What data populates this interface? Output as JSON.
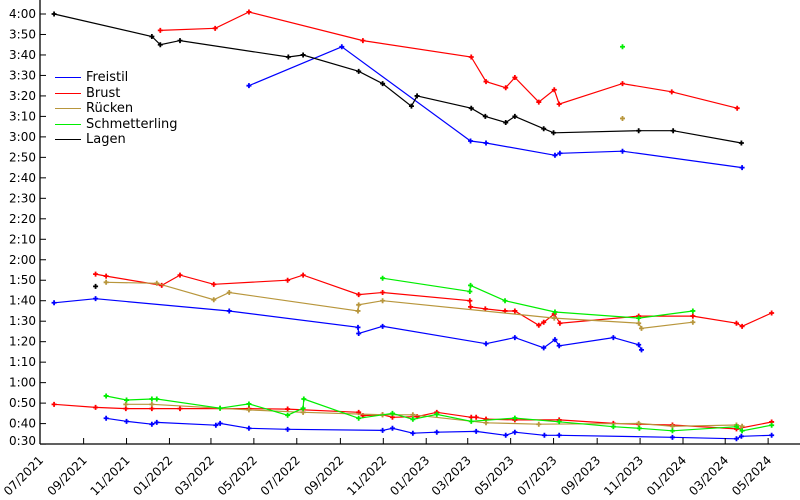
{
  "chart_data": {
    "type": "line",
    "title": "",
    "xlabel": "",
    "ylabel": "",
    "x_unit": "date",
    "y_unit": "seconds (shown as m:ss)",
    "xlim": [
      "2021-07-01",
      "2024-06-15"
    ],
    "ylim": [
      30,
      240
    ],
    "grid": false,
    "legend_position": "top-left",
    "y_ticks": [
      30,
      40,
      50,
      60,
      70,
      80,
      90,
      100,
      110,
      120,
      130,
      140,
      150,
      160,
      170,
      180,
      190,
      200,
      210,
      220,
      230,
      240
    ],
    "y_tick_labels": [
      "0:30",
      "0:40",
      "0:50",
      "1:00",
      "1:10",
      "1:20",
      "1:30",
      "1:40",
      "1:50",
      "2:00",
      "2:10",
      "2:20",
      "2:30",
      "2:40",
      "2:50",
      "3:00",
      "3:10",
      "3:20",
      "3:30",
      "3:40",
      "3:50",
      "4:00"
    ],
    "x_ticks": [
      "2021-07-01",
      "2021-09-01",
      "2021-11-01",
      "2022-01-01",
      "2022-03-01",
      "2022-05-01",
      "2022-07-01",
      "2022-09-01",
      "2022-11-01",
      "2023-01-01",
      "2023-03-01",
      "2023-05-01",
      "2023-07-01",
      "2023-09-01",
      "2023-11-01",
      "2024-01-01",
      "2024-03-01",
      "2024-05-01"
    ],
    "x_tick_labels": [
      "07/2021",
      "09/2021",
      "11/2021",
      "01/2022",
      "03/2022",
      "05/2022",
      "07/2022",
      "09/2022",
      "11/2022",
      "01/2023",
      "03/2023",
      "05/2023",
      "07/2023",
      "09/2023",
      "11/2023",
      "01/2024",
      "03/2024",
      "05/2024"
    ],
    "series": [
      {
        "name": "Freistil",
        "color": "#0000ff",
        "segments": [
          [
            [
              "2022-04-24",
              205
            ],
            [
              "2022-09-03",
              224
            ],
            [
              "2023-03-05",
              178
            ],
            [
              "2023-03-27",
              177
            ],
            [
              "2023-07-03",
              171
            ],
            [
              "2023-07-10",
              172
            ],
            [
              "2023-10-07",
              173
            ],
            [
              "2024-03-25",
              165
            ]
          ],
          [
            [
              "2021-07-21",
              99
            ],
            [
              "2021-09-18",
              101
            ],
            [
              "2022-03-27",
              95
            ],
            [
              "2022-09-26",
              87
            ],
            [
              "2022-09-27",
              84
            ],
            [
              "2022-10-31",
              87.5
            ],
            [
              "2023-03-27",
              79
            ],
            [
              "2023-05-07",
              82
            ],
            [
              "2023-06-17",
              77
            ],
            [
              "2023-07-03",
              81
            ],
            [
              "2023-07-09",
              78
            ],
            [
              "2023-09-24",
              82
            ],
            [
              "2023-10-30",
              78.5
            ],
            [
              "2023-11-03",
              76
            ]
          ],
          [
            [
              "2021-10-03",
              42.6
            ],
            [
              "2021-11-01",
              41.1
            ],
            [
              "2021-12-07",
              39.7
            ],
            [
              "2021-12-14",
              40.6
            ],
            [
              "2022-03-08",
              39.2
            ],
            [
              "2022-03-14",
              40.1
            ],
            [
              "2022-04-24",
              37.7
            ],
            [
              "2022-06-18",
              37.2
            ],
            [
              "2022-10-31",
              36.7
            ],
            [
              "2022-11-14",
              37.7
            ],
            [
              "2022-12-13",
              35.3
            ],
            [
              "2023-01-16",
              35.8
            ],
            [
              "2023-03-13",
              36.2
            ],
            [
              "2023-04-24",
              34.3
            ],
            [
              "2023-05-07",
              35.8
            ],
            [
              "2023-06-18",
              34.3
            ],
            [
              "2023-07-09",
              34.3
            ],
            [
              "2023-12-17",
              33.3
            ],
            [
              "2024-03-17",
              32.6
            ],
            [
              "2024-03-24",
              33.8
            ],
            [
              "2024-05-06",
              34.3
            ]
          ]
        ]
      },
      {
        "name": "Brust",
        "color": "#ff0000",
        "segments": [
          [
            [
              "2021-12-19",
              232
            ],
            [
              "2022-03-07",
              233
            ],
            [
              "2022-04-24",
              241
            ],
            [
              "2022-10-03",
              227
            ],
            [
              "2023-03-06",
              219
            ],
            [
              "2023-03-27",
              207
            ],
            [
              "2023-04-24",
              204
            ],
            [
              "2023-05-07",
              209
            ],
            [
              "2023-06-10",
              197
            ],
            [
              "2023-07-02",
              203
            ],
            [
              "2023-07-09",
              196
            ],
            [
              "2023-10-07",
              206
            ],
            [
              "2023-12-16",
              202
            ],
            [
              "2024-03-18",
              194
            ]
          ],
          [
            [
              "2021-09-18",
              113
            ],
            [
              "2021-10-03",
              112
            ],
            [
              "2021-12-21",
              107.5
            ],
            [
              "2022-01-16",
              112.5
            ],
            [
              "2022-03-05",
              108
            ],
            [
              "2022-06-18",
              110
            ],
            [
              "2022-07-10",
              112.5
            ],
            [
              "2022-09-27",
              103
            ],
            [
              "2022-10-31",
              104
            ],
            [
              "2023-03-04",
              100
            ],
            [
              "2023-03-05",
              97
            ],
            [
              "2023-03-26",
              96
            ],
            [
              "2023-04-23",
              95
            ],
            [
              "2023-05-07",
              95
            ],
            [
              "2023-06-10",
              88
            ],
            [
              "2023-06-17",
              89.5
            ],
            [
              "2023-07-02",
              93.5
            ],
            [
              "2023-07-10",
              89
            ],
            [
              "2023-10-30",
              92.5
            ],
            [
              "2024-01-15",
              92.5
            ],
            [
              "2024-03-17",
              89
            ],
            [
              "2024-03-25",
              87.5
            ],
            [
              "2024-05-06",
              94
            ]
          ],
          [
            [
              "2021-07-21",
              49.4
            ],
            [
              "2021-09-18",
              47.9
            ],
            [
              "2021-10-31",
              47.3
            ],
            [
              "2021-12-07",
              47.3
            ],
            [
              "2022-01-16",
              47.3
            ],
            [
              "2022-04-24",
              47.3
            ],
            [
              "2022-06-18",
              47.1
            ],
            [
              "2022-09-27",
              45.5
            ],
            [
              "2022-10-03",
              43.9
            ],
            [
              "2022-10-31",
              44.3
            ],
            [
              "2022-11-14",
              43.1
            ],
            [
              "2022-12-19",
              43.4
            ],
            [
              "2023-01-16",
              45.5
            ],
            [
              "2023-03-06",
              43.1
            ],
            [
              "2023-03-13",
              43.1
            ],
            [
              "2023-03-27",
              42.2
            ],
            [
              "2023-05-07",
              41.8
            ],
            [
              "2023-07-09",
              41.8
            ],
            [
              "2023-09-24",
              40.1
            ],
            [
              "2023-10-30",
              39.7
            ],
            [
              "2023-12-17",
              39.3
            ],
            [
              "2024-03-17",
              37.4
            ],
            [
              "2024-05-06",
              40.8
            ]
          ]
        ]
      },
      {
        "name": "Rücken",
        "color": "#b8963c",
        "segments": [
          [
            [
              "2023-10-07",
              189
            ]
          ],
          [
            [
              "2021-10-03",
              109
            ],
            [
              "2021-12-14",
              108.5
            ],
            [
              "2022-03-05",
              100.5
            ],
            [
              "2022-03-27",
              104
            ],
            [
              "2022-09-26",
              95
            ],
            [
              "2022-09-27",
              98
            ],
            [
              "2022-10-31",
              100
            ],
            [
              "2023-07-02",
              91.5
            ],
            [
              "2023-10-30",
              89
            ],
            [
              "2023-11-03",
              86.5
            ],
            [
              "2024-01-15",
              89.5
            ]
          ],
          [
            [
              "2021-10-31",
              49.4
            ],
            [
              "2021-12-07",
              49.4
            ],
            [
              "2022-03-14",
              47.5
            ],
            [
              "2022-04-24",
              46.7
            ],
            [
              "2022-07-10",
              45.5
            ],
            [
              "2022-10-31",
              44.3
            ],
            [
              "2022-12-13",
              44.3
            ],
            [
              "2023-03-27",
              40.4
            ],
            [
              "2023-06-10",
              39.7
            ],
            [
              "2023-10-30",
              40.1
            ],
            [
              "2023-12-17",
              38.7
            ],
            [
              "2024-03-17",
              39.3
            ],
            [
              "2024-03-25",
              38.7
            ]
          ]
        ]
      },
      {
        "name": "Schmetterling",
        "color": "#00ee00",
        "segments": [
          [
            [
              "2023-10-07",
              224
            ]
          ],
          [
            [
              "2022-10-31",
              111
            ],
            [
              "2023-03-04",
              104.5
            ],
            [
              "2023-03-05",
              107.5
            ],
            [
              "2023-04-23",
              100
            ],
            [
              "2023-07-03",
              94.5
            ],
            [
              "2023-10-30",
              91.5
            ],
            [
              "2024-01-15",
              95
            ]
          ],
          [
            [
              "2021-10-03",
              53.5
            ],
            [
              "2021-11-01",
              51.5
            ],
            [
              "2021-12-07",
              52
            ],
            [
              "2021-12-14",
              52
            ],
            [
              "2022-03-14",
              47.5
            ],
            [
              "2022-04-24",
              49.6
            ],
            [
              "2022-06-18",
              44.1
            ],
            [
              "2022-07-10",
              47.5
            ],
            [
              "2022-07-11",
              52
            ],
            [
              "2022-09-27",
              42.6
            ],
            [
              "2022-11-14",
              45
            ],
            [
              "2022-12-13",
              42.1
            ],
            [
              "2023-01-16",
              44.5
            ],
            [
              "2023-03-06",
              41.1
            ],
            [
              "2023-05-07",
              42.7
            ],
            [
              "2023-07-09",
              40.9
            ],
            [
              "2023-09-24",
              38.5
            ],
            [
              "2023-10-31",
              37.7
            ],
            [
              "2023-12-17",
              36.5
            ],
            [
              "2024-03-17",
              38.5
            ],
            [
              "2024-03-25",
              36.5
            ],
            [
              "2024-05-06",
              39.2
            ]
          ]
        ]
      },
      {
        "name": "Lagen",
        "color": "#000000",
        "segments": [
          [
            [
              "2021-07-21",
              240
            ],
            [
              "2021-12-07",
              229
            ],
            [
              "2021-12-19",
              225
            ],
            [
              "2022-01-16",
              227
            ],
            [
              "2022-06-19",
              219
            ],
            [
              "2022-07-10",
              220
            ],
            [
              "2022-09-27",
              212
            ],
            [
              "2022-10-31",
              206
            ],
            [
              "2022-12-11",
              195
            ],
            [
              "2022-12-19",
              200
            ],
            [
              "2023-03-06",
              194
            ],
            [
              "2023-03-26",
              190
            ],
            [
              "2023-04-24",
              187
            ],
            [
              "2023-05-07",
              190
            ],
            [
              "2023-06-17",
              184
            ],
            [
              "2023-07-01",
              182
            ],
            [
              "2023-10-30",
              183
            ],
            [
              "2023-12-18",
              183
            ],
            [
              "2024-03-24",
              177
            ]
          ],
          [
            [
              "2021-09-18",
              107
            ]
          ]
        ]
      }
    ]
  }
}
